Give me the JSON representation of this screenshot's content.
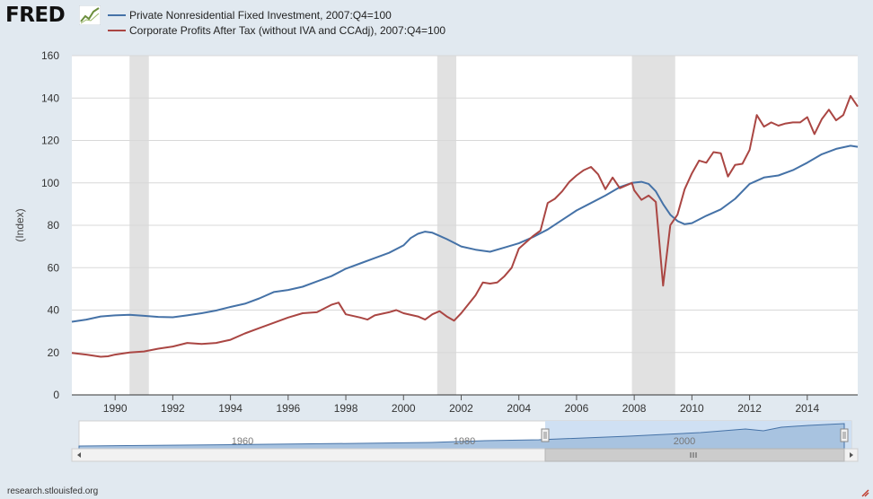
{
  "brand": {
    "logo_text": "FRED"
  },
  "footer": {
    "source": "research.stlouisfed.org"
  },
  "colors": {
    "series1": "#4572a7",
    "series2": "#aa4643",
    "recession": "#e1e1e1",
    "background": "#e1e9f0",
    "plot_bg": "#ffffff"
  },
  "navigator": {
    "labels": [
      "1960",
      "1980",
      "2000"
    ],
    "scroll_icon": "grip-icon"
  },
  "chart_data": {
    "type": "line",
    "title": "",
    "xlabel": "",
    "ylabel": "(Index)",
    "xlim": [
      1988.5,
      2015.75
    ],
    "ylim": [
      0,
      160
    ],
    "y_ticks": [
      0,
      20,
      40,
      60,
      80,
      100,
      120,
      140,
      160
    ],
    "x_ticks": [
      1990,
      1992,
      1994,
      1996,
      1998,
      2000,
      2002,
      2004,
      2006,
      2008,
      2010,
      2012,
      2014
    ],
    "grid": true,
    "legend_position": "top-left",
    "recessions": [
      [
        1990.5,
        1991.17
      ],
      [
        2001.17,
        2001.83
      ],
      [
        2007.92,
        2009.42
      ]
    ],
    "series": [
      {
        "name": "Private Nonresidential Fixed Investment, 2007:Q4=100",
        "color": "#4572a7",
        "points": [
          [
            1988.5,
            34.5
          ],
          [
            1989.0,
            35.5
          ],
          [
            1989.5,
            37.0
          ],
          [
            1990.0,
            37.5
          ],
          [
            1990.5,
            37.8
          ],
          [
            1991.0,
            37.3
          ],
          [
            1991.5,
            36.8
          ],
          [
            1992.0,
            36.6
          ],
          [
            1992.5,
            37.5
          ],
          [
            1993.0,
            38.5
          ],
          [
            1993.5,
            39.8
          ],
          [
            1994.0,
            41.5
          ],
          [
            1994.5,
            43.0
          ],
          [
            1995.0,
            45.5
          ],
          [
            1995.5,
            48.5
          ],
          [
            1996.0,
            49.5
          ],
          [
            1996.5,
            51.0
          ],
          [
            1997.0,
            53.5
          ],
          [
            1997.5,
            56.0
          ],
          [
            1998.0,
            59.5
          ],
          [
            1998.5,
            62.0
          ],
          [
            1999.0,
            64.5
          ],
          [
            1999.5,
            67.0
          ],
          [
            2000.0,
            70.5
          ],
          [
            2000.25,
            74.0
          ],
          [
            2000.5,
            76.0
          ],
          [
            2000.75,
            77.0
          ],
          [
            2001.0,
            76.5
          ],
          [
            2001.25,
            75.0
          ],
          [
            2001.5,
            73.5
          ],
          [
            2002.0,
            70.0
          ],
          [
            2002.5,
            68.5
          ],
          [
            2003.0,
            67.5
          ],
          [
            2003.5,
            69.5
          ],
          [
            2004.0,
            71.5
          ],
          [
            2004.5,
            74.5
          ],
          [
            2005.0,
            78.0
          ],
          [
            2005.5,
            82.5
          ],
          [
            2006.0,
            87.0
          ],
          [
            2006.5,
            90.5
          ],
          [
            2007.0,
            94.0
          ],
          [
            2007.5,
            98.0
          ],
          [
            2007.92,
            100.0
          ],
          [
            2008.25,
            100.5
          ],
          [
            2008.5,
            99.5
          ],
          [
            2008.75,
            96.0
          ],
          [
            2009.0,
            90.0
          ],
          [
            2009.25,
            85.0
          ],
          [
            2009.5,
            82.0
          ],
          [
            2009.75,
            80.5
          ],
          [
            2010.0,
            81.0
          ],
          [
            2010.5,
            84.5
          ],
          [
            2011.0,
            87.5
          ],
          [
            2011.5,
            92.5
          ],
          [
            2012.0,
            99.5
          ],
          [
            2012.5,
            102.5
          ],
          [
            2013.0,
            103.5
          ],
          [
            2013.5,
            106.0
          ],
          [
            2014.0,
            109.5
          ],
          [
            2014.5,
            113.5
          ],
          [
            2015.0,
            116.0
          ],
          [
            2015.5,
            117.5
          ],
          [
            2015.75,
            117.0
          ]
        ]
      },
      {
        "name": "Corporate Profits After Tax (without IVA and CCAdj), 2007:Q4=100",
        "color": "#aa4643",
        "points": [
          [
            1988.5,
            19.8
          ],
          [
            1989.0,
            19.0
          ],
          [
            1989.5,
            18.0
          ],
          [
            1989.75,
            18.2
          ],
          [
            1990.0,
            19.0
          ],
          [
            1990.5,
            20.0
          ],
          [
            1991.0,
            20.5
          ],
          [
            1991.5,
            21.8
          ],
          [
            1992.0,
            22.8
          ],
          [
            1992.5,
            24.5
          ],
          [
            1993.0,
            24.0
          ],
          [
            1993.5,
            24.5
          ],
          [
            1994.0,
            26.0
          ],
          [
            1994.5,
            29.0
          ],
          [
            1995.0,
            31.5
          ],
          [
            1995.5,
            34.0
          ],
          [
            1996.0,
            36.5
          ],
          [
            1996.5,
            38.5
          ],
          [
            1997.0,
            39.0
          ],
          [
            1997.5,
            42.5
          ],
          [
            1997.75,
            43.5
          ],
          [
            1998.0,
            38.0
          ],
          [
            1998.5,
            36.5
          ],
          [
            1998.75,
            35.5
          ],
          [
            1999.0,
            37.5
          ],
          [
            1999.5,
            39.0
          ],
          [
            1999.75,
            40.0
          ],
          [
            2000.0,
            38.5
          ],
          [
            2000.5,
            37.0
          ],
          [
            2000.75,
            35.5
          ],
          [
            2001.0,
            38.0
          ],
          [
            2001.25,
            39.5
          ],
          [
            2001.5,
            37.0
          ],
          [
            2001.75,
            35.0
          ],
          [
            2002.0,
            38.5
          ],
          [
            2002.5,
            47.0
          ],
          [
            2002.75,
            53.0
          ],
          [
            2003.0,
            52.5
          ],
          [
            2003.25,
            53.0
          ],
          [
            2003.5,
            56.0
          ],
          [
            2003.75,
            60.0
          ],
          [
            2004.0,
            69.0
          ],
          [
            2004.5,
            75.0
          ],
          [
            2004.75,
            77.5
          ],
          [
            2005.0,
            90.5
          ],
          [
            2005.25,
            92.5
          ],
          [
            2005.5,
            96.0
          ],
          [
            2005.75,
            100.5
          ],
          [
            2006.0,
            103.5
          ],
          [
            2006.25,
            106.0
          ],
          [
            2006.5,
            107.5
          ],
          [
            2006.75,
            104.0
          ],
          [
            2007.0,
            97.0
          ],
          [
            2007.25,
            102.5
          ],
          [
            2007.5,
            97.5
          ],
          [
            2007.92,
            100.0
          ],
          [
            2008.0,
            96.5
          ],
          [
            2008.25,
            92.0
          ],
          [
            2008.5,
            94.0
          ],
          [
            2008.75,
            91.0
          ],
          [
            2009.0,
            51.5
          ],
          [
            2009.25,
            80.0
          ],
          [
            2009.5,
            85.0
          ],
          [
            2009.75,
            97.0
          ],
          [
            2010.0,
            104.5
          ],
          [
            2010.25,
            110.5
          ],
          [
            2010.5,
            109.5
          ],
          [
            2010.75,
            114.5
          ],
          [
            2011.0,
            114.0
          ],
          [
            2011.25,
            103.0
          ],
          [
            2011.5,
            108.5
          ],
          [
            2011.75,
            109.0
          ],
          [
            2012.0,
            115.5
          ],
          [
            2012.25,
            132.0
          ],
          [
            2012.5,
            126.5
          ],
          [
            2012.75,
            128.5
          ],
          [
            2013.0,
            127.0
          ],
          [
            2013.25,
            128.0
          ],
          [
            2013.5,
            128.5
          ],
          [
            2013.75,
            128.5
          ],
          [
            2014.0,
            131.0
          ],
          [
            2014.25,
            123.0
          ],
          [
            2014.5,
            130.0
          ],
          [
            2014.75,
            134.5
          ],
          [
            2015.0,
            129.5
          ],
          [
            2015.25,
            132.0
          ],
          [
            2015.5,
            141.0
          ],
          [
            2015.75,
            136.0
          ]
        ]
      }
    ]
  }
}
